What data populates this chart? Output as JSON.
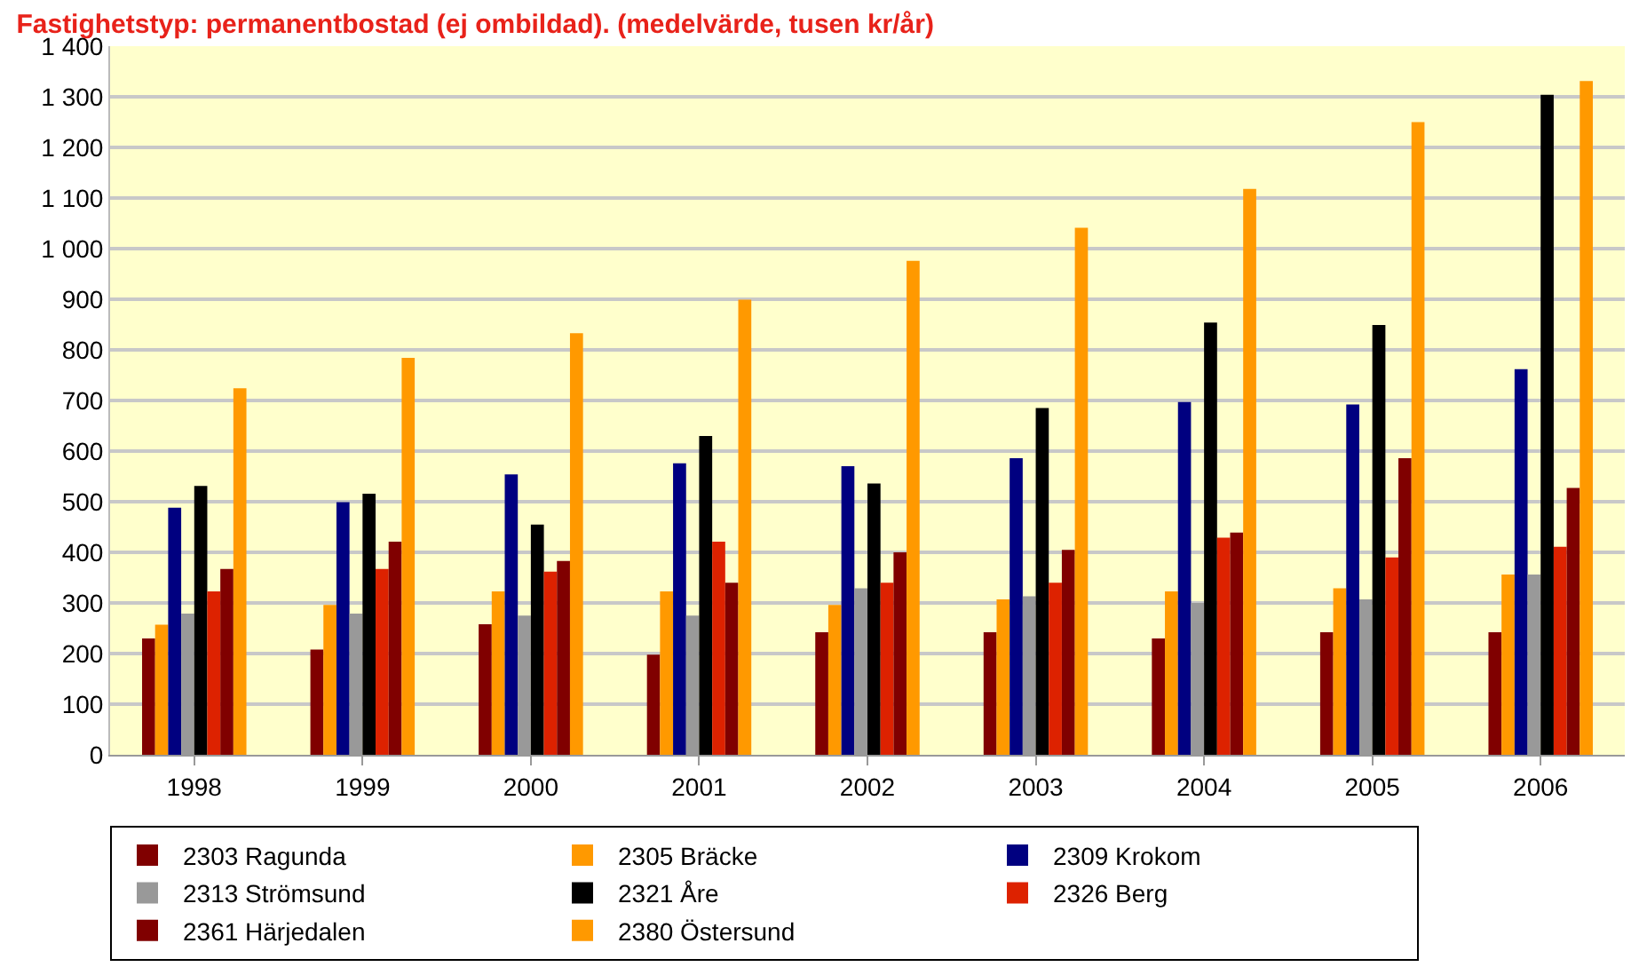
{
  "chart_data": {
    "type": "bar",
    "title": "Fastighetstyp: permanentbostad (ej ombildad). (medelvärde, tusen kr/år)",
    "categories": [
      "1998",
      "1999",
      "2000",
      "2001",
      "2002",
      "2003",
      "2004",
      "2005",
      "2006"
    ],
    "series": [
      {
        "name": "2303 Ragunda",
        "color": "#800000",
        "values": [
          230,
          208,
          258,
          198,
          242,
          242,
          230,
          242,
          242
        ]
      },
      {
        "name": "2305 Bräcke",
        "color": "#ff9900",
        "values": [
          257,
          296,
          323,
          323,
          296,
          307,
          323,
          329,
          356
        ]
      },
      {
        "name": "2309 Krokom",
        "color": "#000080",
        "values": [
          488,
          499,
          554,
          576,
          570,
          586,
          697,
          692,
          762
        ]
      },
      {
        "name": "2313 Strömsund",
        "color": "#999999",
        "values": [
          279,
          279,
          275,
          275,
          329,
          313,
          300,
          307,
          356
        ]
      },
      {
        "name": "2321 Åre",
        "color": "#000000",
        "values": [
          531,
          516,
          455,
          630,
          536,
          685,
          854,
          849,
          1304
        ]
      },
      {
        "name": "2326 Berg",
        "color": "#dd2200",
        "values": [
          323,
          367,
          362,
          421,
          340,
          340,
          429,
          390,
          411
        ]
      },
      {
        "name": "2361 Härjedalen",
        "color": "#800000",
        "values": [
          367,
          421,
          383,
          340,
          400,
          405,
          439,
          586,
          527
        ]
      },
      {
        "name": "2380 Östersund",
        "color": "#ff9900",
        "values": [
          724,
          784,
          833,
          899,
          976,
          1041,
          1118,
          1250,
          1331
        ]
      }
    ],
    "ylim": [
      0,
      1400
    ],
    "yticks": [
      0,
      100,
      200,
      300,
      400,
      500,
      600,
      700,
      800,
      900,
      {
        "value": 1000,
        "label": "1 000"
      },
      {
        "value": 1100,
        "label": "1 100"
      },
      {
        "value": 1200,
        "label": "1 200"
      },
      {
        "value": 1300,
        "label": "1 300"
      },
      {
        "value": 1400,
        "label": "1 400"
      }
    ],
    "grid": "y",
    "legend": "bottom"
  }
}
